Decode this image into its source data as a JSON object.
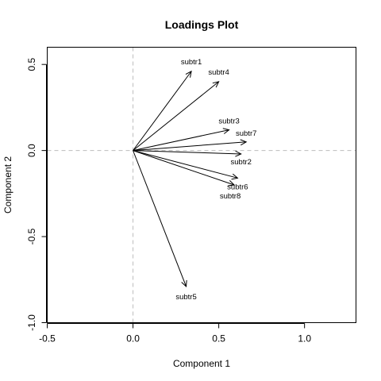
{
  "chart_data": {
    "type": "scatter",
    "title": "Loadings Plot",
    "xlabel": "Component 1",
    "ylabel": "Component 2",
    "xlim": [
      -0.5,
      1.3
    ],
    "ylim": [
      -1.0,
      0.6
    ],
    "x_ticks": [
      -0.5,
      0.0,
      0.5,
      1.0
    ],
    "x_tick_labels": [
      "-0.5",
      "0.0",
      "0.5",
      "1.0"
    ],
    "y_ticks": [
      -1.0,
      -0.5,
      0.0,
      0.5
    ],
    "y_tick_labels": [
      "-1.0",
      "-0.5",
      "0.0",
      "0.5"
    ],
    "reference_lines": {
      "x": 0,
      "y": 0,
      "style": "dashed",
      "color": "#bdbdbd"
    },
    "grid": false,
    "arrows": [
      {
        "name": "subtr1",
        "x": 0.34,
        "y": 0.46
      },
      {
        "name": "subtr4",
        "x": 0.5,
        "y": 0.4
      },
      {
        "name": "subtr3",
        "x": 0.56,
        "y": 0.12
      },
      {
        "name": "subtr7",
        "x": 0.66,
        "y": 0.05
      },
      {
        "name": "subtr2",
        "x": 0.63,
        "y": -0.02
      },
      {
        "name": "subtr6",
        "x": 0.61,
        "y": -0.16
      },
      {
        "name": "subtr8",
        "x": 0.59,
        "y": -0.2
      },
      {
        "name": "subtr5",
        "x": 0.31,
        "y": -0.79
      }
    ]
  }
}
